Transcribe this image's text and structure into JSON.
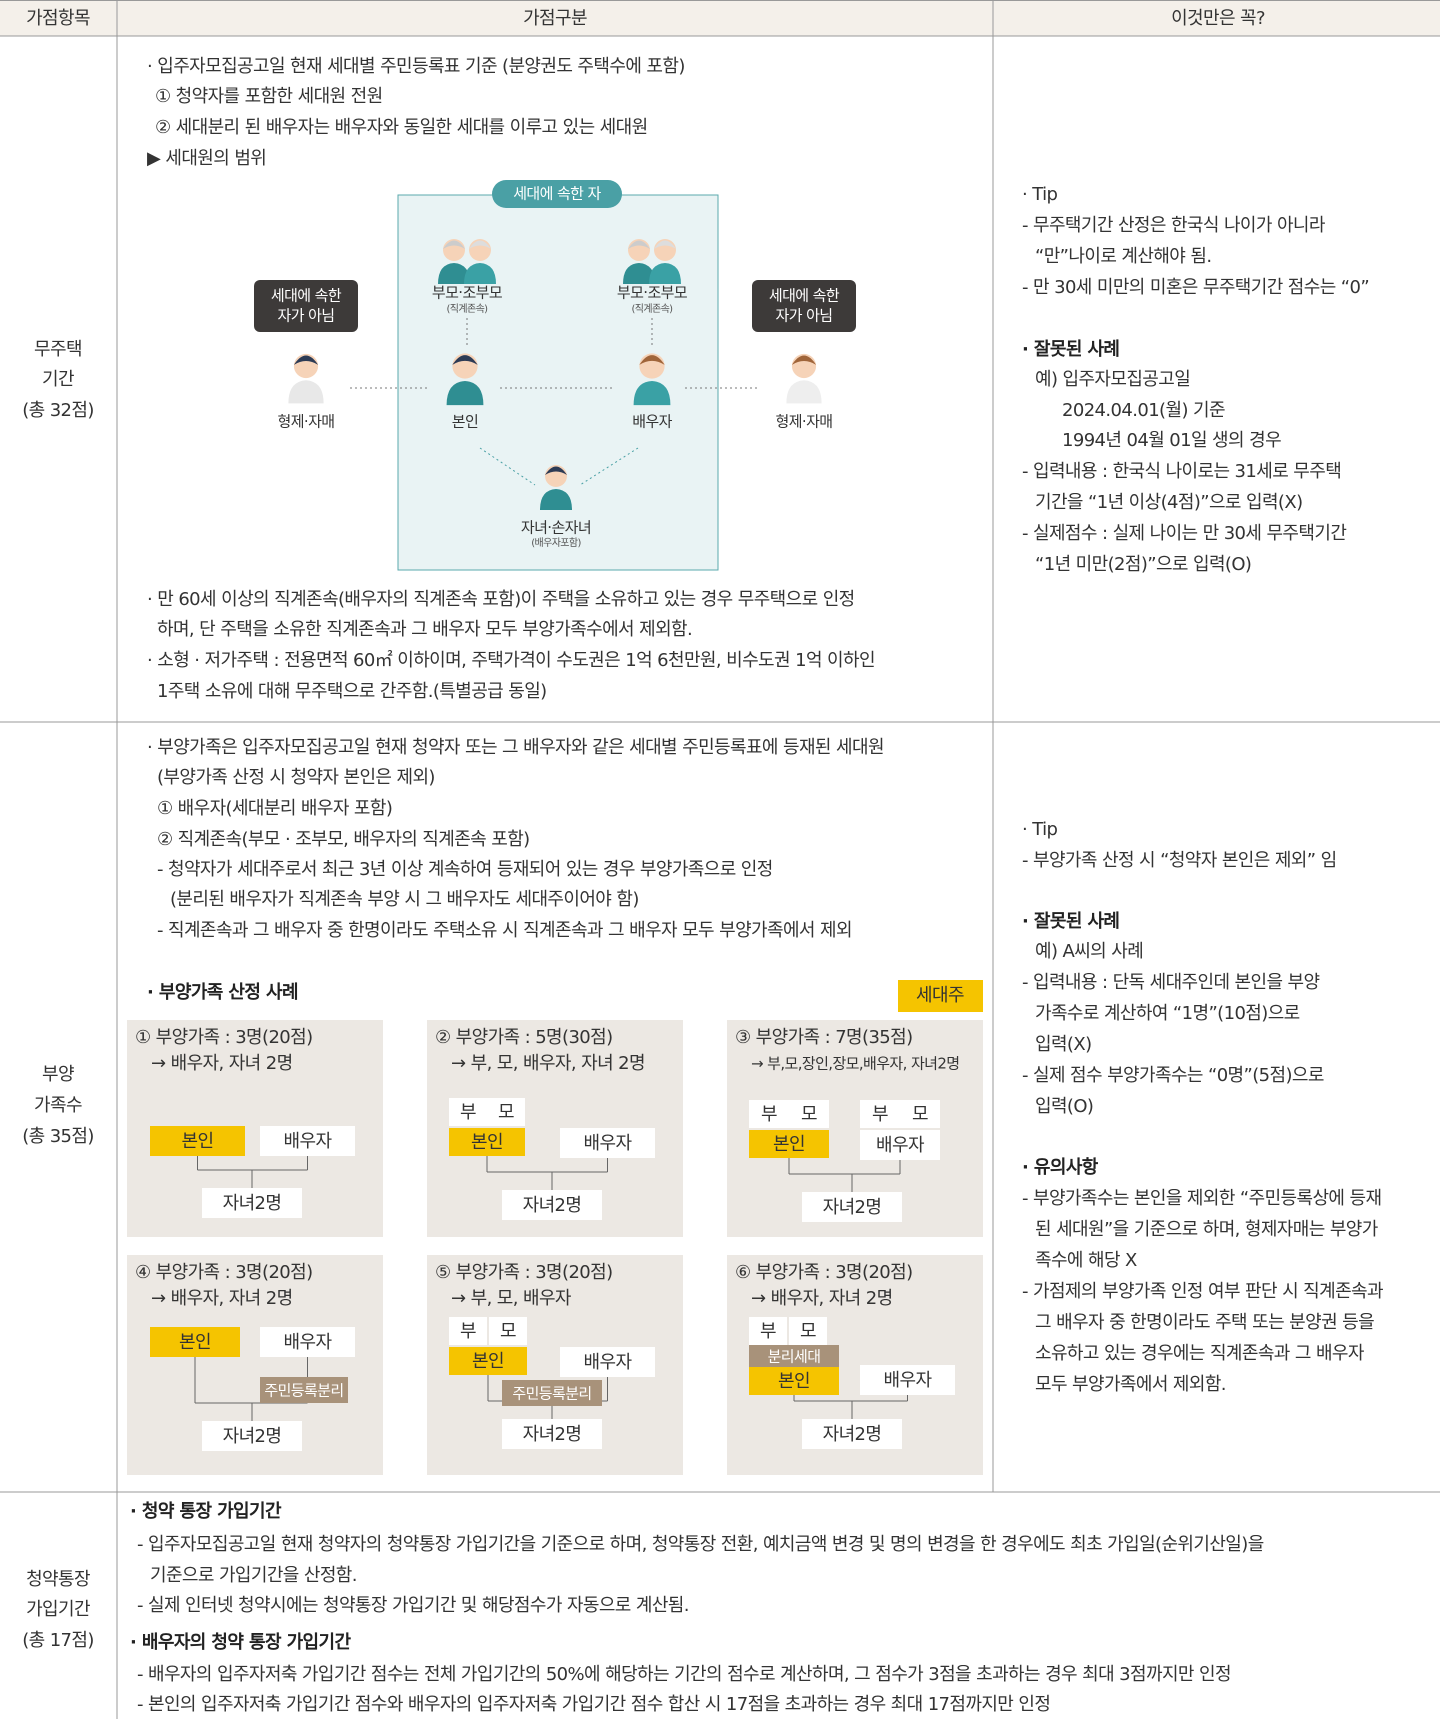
{
  "header": {
    "columns": [
      "가점항목",
      "가점구분",
      "이것만은 꼭?"
    ]
  },
  "sections": [
    {
      "item": [
        "무주택",
        "기간",
        "(총 32점)"
      ],
      "content": [
        "· 입주자모집공고일 현재 세대별 주민등록표 기준 (분양권도 주택수에 포함)",
        "① 청약자를 포함한 세대원 전원",
        "② 세대분리 된 배우자는 배우자와 동일한 세대를 이루고 있는 세대원",
        "▶ 세대원의 범위"
      ],
      "diagram": {
        "group_label": "세대에 속한 자",
        "members": [
          {
            "label": "부모·조부모",
            "note": "(직계존속)"
          },
          {
            "label": "부모·조부모",
            "note": "(직계존속)"
          },
          {
            "label": "본인"
          },
          {
            "label": "배우자"
          },
          {
            "label": "자녀·손자녀",
            "note": "(배우자포함)"
          }
        ],
        "non_members": [
          {
            "badge": [
              "세대에 속한",
              "자가 아님"
            ],
            "label": "형제·자매"
          },
          {
            "badge": [
              "세대에 속한",
              "자가 아님"
            ],
            "label": "형제·자매"
          }
        ]
      },
      "notes": [
        "· 만 60세 이상의 직계존속(배우자의 직계존속 포함)이 주택을 소유하고 있는 경우 무주택으로 인정",
        "하며, 단 주택을 소유한 직계존속과 그 배우자 모두 부양가족수에서 제외함.",
        "· 소형 · 저가주택 : 전용면적 60㎡ 이하이며, 주택가격이 수도권은 1억 6천만원, 비수도권 1억 이하인",
        "1주택 소유에 대해 무주택으로 간주함.(특별공급 동일)"
      ],
      "tips": [
        "· Tip",
        "- 무주택기간 산정은 한국식 나이가 아니라",
        "“만”나이로 계산해야 됨.",
        "- 만 30세 미만의 미혼은 무주택기간 점수는 “0”",
        "· 잘못된 사례",
        "예) 입주자모집공고일",
        "2024.04.01(월) 기준",
        "1994년 04월 01일 생의 경우",
        "- 입력내용 : 한국식 나이로는 31세로 무주택",
        "기간을 “1년 이상(4점)”으로 입력(X)",
        "- 실제점수 : 실제 나이는 만 30세 무주택기간",
        "“1년 미만(2점)”으로 입력(O)"
      ]
    },
    {
      "item": [
        "부양",
        "가족수",
        "(총 35점)"
      ],
      "content": [
        "· 부양가족은 입주자모집공고일 현재 청약자 또는 그 배우자와 같은 세대별 주민등록표에 등재된 세대원",
        "(부양가족 산정 시 청약자 본인은 제외)",
        "① 배우자(세대분리 배우자 포함)",
        "② 직계존속(부모 · 조부모, 배우자의 직계존속 포함)",
        "- 청약자가 세대주로서 최근 3년 이상 계속하여 등재되어 있는 경우 부양가족으로 인정",
        "(분리된 배우자가 직계존속 부양 시 그 배우자도 세대주이어야 함)",
        "- 직계존속과 그 배우자 중 한명이라도 주택소유 시 직계존속과 그 배우자 모두 부양가족에서 제외"
      ],
      "cases_title": "· 부양가족 산정 사례",
      "head_legend": "세대주",
      "cases": [
        {
          "title": "① 부양가족 : 3명(20점)",
          "detail": "→ 배우자, 자녀 2명",
          "nodes": [
            "본인",
            "배우자",
            "자녀2명"
          ]
        },
        {
          "title": "② 부양가족 : 5명(30점)",
          "detail": "→ 부, 모, 배우자, 자녀 2명",
          "nodes": [
            "부",
            "모",
            "본인",
            "배우자",
            "자녀2명"
          ]
        },
        {
          "title": "③ 부양가족 : 7명(35점)",
          "detail": "→ 부,모,장인,장모,배우자, 자녀2명",
          "nodes": [
            "부",
            "모",
            "부",
            "모",
            "본인",
            "배우자",
            "자녀2명"
          ]
        },
        {
          "title": "④ 부양가족 : 3명(20점)",
          "detail": "→ 배우자, 자녀 2명",
          "nodes": [
            "본인",
            "배우자",
            "주민등록분리",
            "자녀2명"
          ]
        },
        {
          "title": "⑤ 부양가족 : 3명(20점)",
          "detail": "→ 부, 모, 배우자",
          "nodes": [
            "부",
            "모",
            "본인",
            "배우자",
            "주민등록분리",
            "자녀2명"
          ]
        },
        {
          "title": "⑥ 부양가족 : 3명(20점)",
          "detail": "→ 배우자, 자녀 2명",
          "nodes": [
            "부",
            "모",
            "분리세대",
            "본인",
            "배우자",
            "자녀2명"
          ]
        }
      ],
      "tips": [
        "· Tip",
        "- 부양가족 산정 시 “청약자 본인은 제외” 임",
        "· 잘못된 사례",
        "예) A씨의 사례",
        "- 입력내용 : 단독 세대주인데 본인을 부양",
        "가족수로 계산하여 “1명”(10점)으로",
        "입력(X)",
        "- 실제 점수 부양가족수는 “0명”(5점)으로",
        "입력(O)",
        "· 유의사항",
        "- 부양가족수는 본인을 제외한 “주민등록상에 등재",
        "된 세대원”을 기준으로 하며, 형제자매는 부양가",
        "족수에 해당 X",
        "- 가점제의 부양가족 인정 여부 판단 시 직계존속과",
        "그 배우자 중 한명이라도 주택 또는 분양권 등을",
        "소유하고 있는 경우에는 직계존속과 그 배우자",
        "모두 부양가족에서 제외함."
      ]
    },
    {
      "item": [
        "청약통장",
        "가입기간",
        "(총 17점)"
      ],
      "content": [
        "· 청약 통장 가입기간",
        "- 입주자모집공고일 현재 청약자의 청약통장 가입기간을 기준으로 하며, 청약통장 전환, 예치금액 변경 및 명의 변경을 한 경우에도 최초 가입일(순위기산일)을",
        "기준으로 가입기간을 산정함.",
        "- 실제 인터넷 청약시에는 청약통장 가입기간 및 해당점수가 자동으로 계산됨.",
        "· 배우자의 청약 통장 가입기간",
        "- 배우자의 입주자저축 가입기간 점수는 전체 가입기간의 50%에 해당하는 기간의 점수로 계산하며, 그 점수가 3점을 초과하는 경우 최대 3점까지만 인정",
        "- 본인의 입주자저축 가입기간 점수와 배우자의 입주자저축 가입기간 점수 합산 시 17점을 초과하는 경우 최대 17점까지만 인정"
      ]
    }
  ]
}
